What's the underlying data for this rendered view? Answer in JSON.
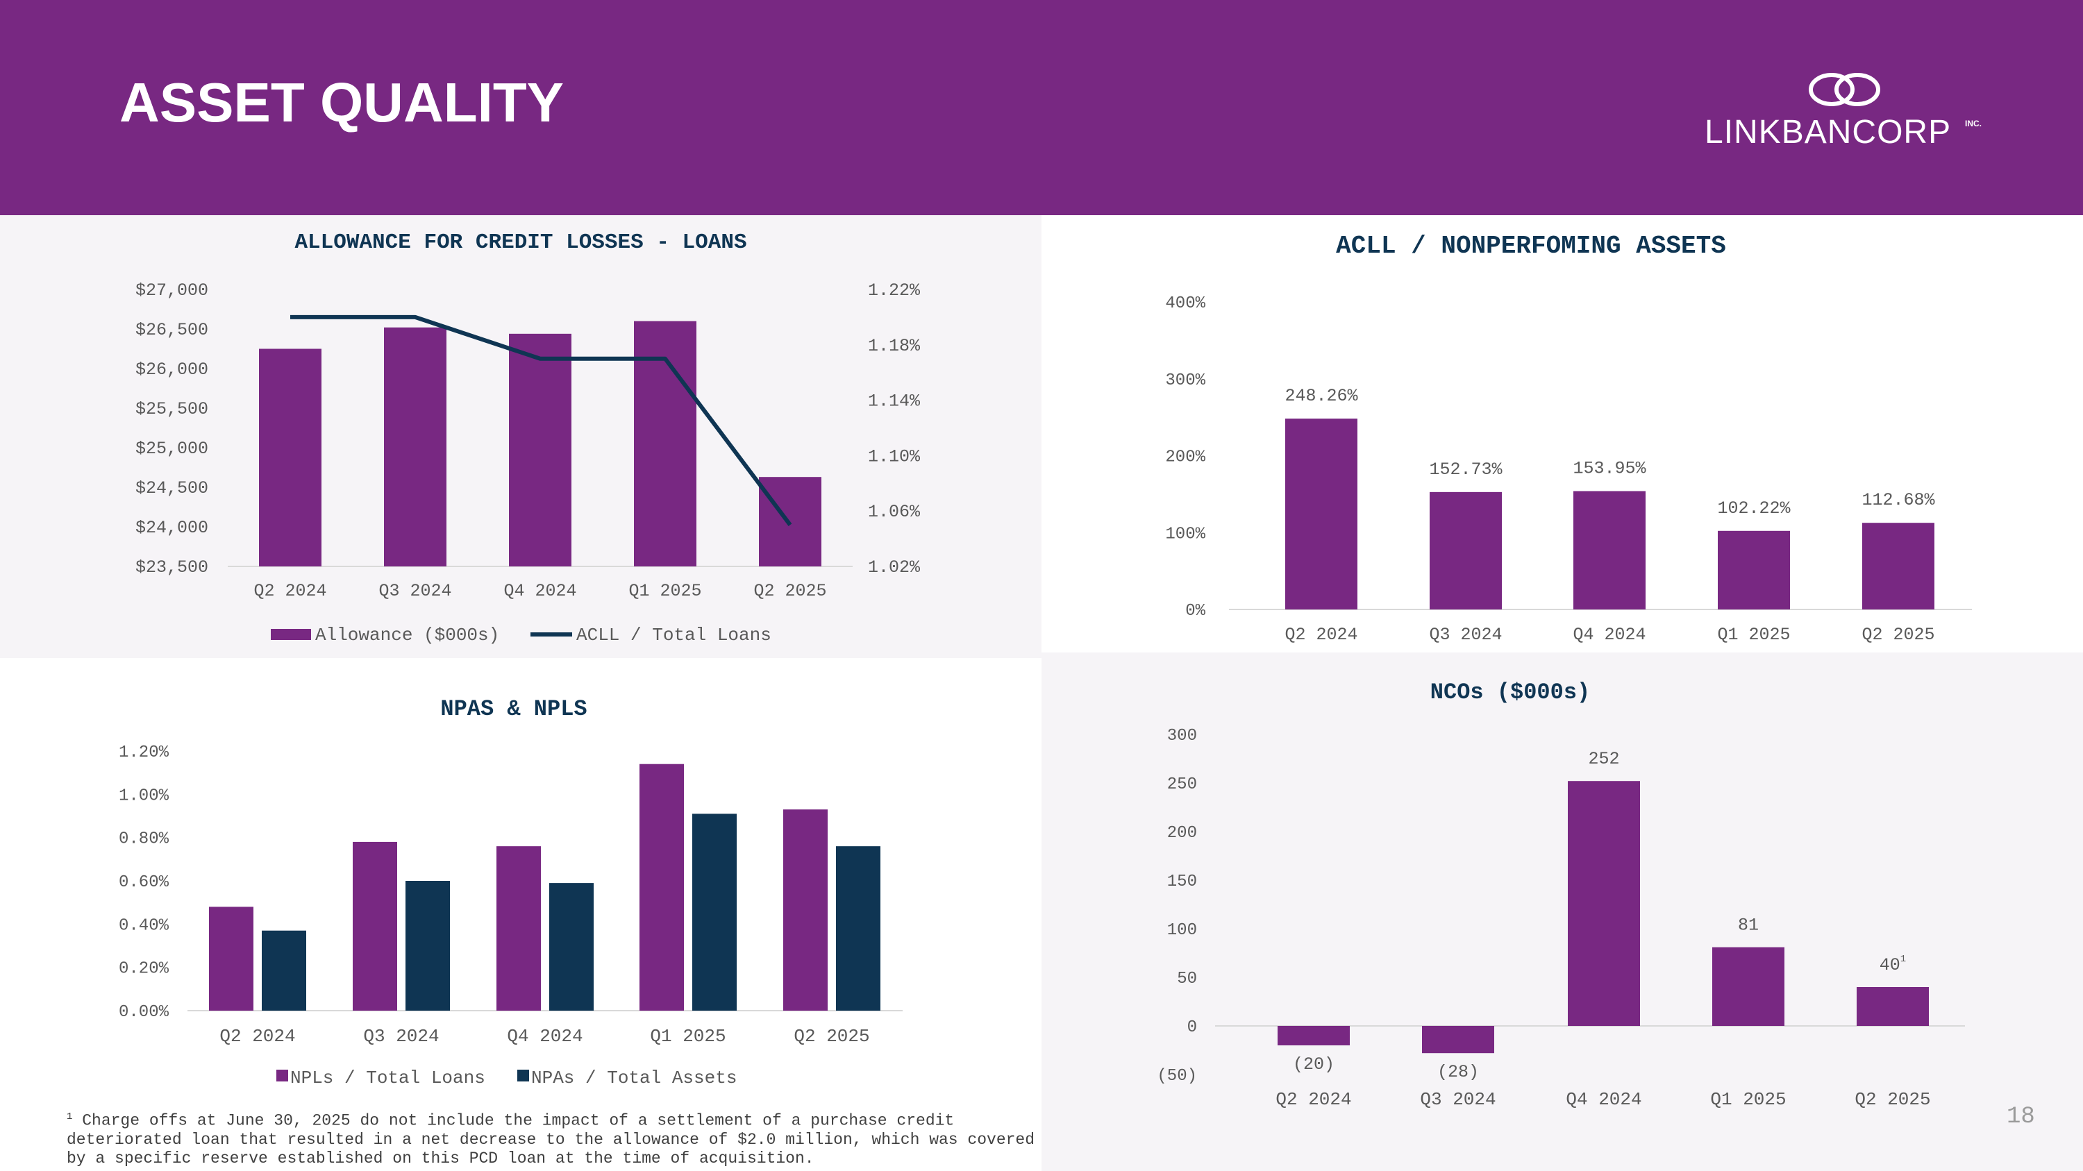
{
  "slide": {
    "title": "ASSET QUALITY",
    "logo_text": "LINKBANCORP",
    "logo_suffix": "INC.",
    "page_number": "18",
    "footnote_marker": "1",
    "footnote": "Charge offs at June 30, 2025 do not include the impact of a settlement of a purchase credit deteriorated loan that resulted in a net decrease to the allowance of $2.0 million, which was covered by a specific reserve established on this PCD loan at the time of acquisition."
  },
  "colors": {
    "purple": "#782882",
    "navy": "#0f3553",
    "axis": "#d9d9d9",
    "text": "#595959"
  },
  "chart_data": [
    {
      "id": "acl",
      "type": "bar",
      "title": "ALLOWANCE FOR CREDIT LOSSES - LOANS",
      "categories": [
        "Q2 2024",
        "Q3 2024",
        "Q4 2024",
        "Q1 2025",
        "Q2 2025"
      ],
      "series": [
        {
          "name": "Allowance ($000s)",
          "type": "bar",
          "axis": "left",
          "values": [
            26250,
            26520,
            26440,
            26600,
            24630
          ]
        },
        {
          "name": "ACLL / Total Loans",
          "type": "line",
          "axis": "right",
          "values": [
            1.2,
            1.2,
            1.17,
            1.17,
            1.05
          ]
        }
      ],
      "ylim": [
        23500,
        27000
      ],
      "yticks": [
        "$23,500",
        "$24,000",
        "$24,500",
        "$25,000",
        "$25,500",
        "$26,000",
        "$26,500",
        "$27,000"
      ],
      "y2lim": [
        1.02,
        1.22
      ],
      "y2ticks": [
        "1.02%",
        "1.06%",
        "1.10%",
        "1.14%",
        "1.18%",
        "1.22%"
      ],
      "legend": "bottom"
    },
    {
      "id": "ratio",
      "type": "bar",
      "title": "ACLL / NONPERFOMING ASSETS",
      "categories": [
        "Q2 2024",
        "Q3 2024",
        "Q4 2024",
        "Q1 2025",
        "Q2 2025"
      ],
      "series": [
        {
          "name": "ACLL / Nonperforming Assets",
          "values": [
            248.26,
            152.73,
            153.95,
            102.22,
            112.68
          ]
        }
      ],
      "data_labels": [
        "248.26%",
        "152.73%",
        "153.95%",
        "102.22%",
        "112.68%"
      ],
      "ylim": [
        0,
        400
      ],
      "yticks": [
        "0%",
        "100%",
        "200%",
        "300%",
        "400%"
      ]
    },
    {
      "id": "npa",
      "type": "bar",
      "title": "NPAS & NPLS",
      "categories": [
        "Q2 2024",
        "Q3 2024",
        "Q4 2024",
        "Q1 2025",
        "Q2 2025"
      ],
      "series": [
        {
          "name": "NPLs / Total Loans",
          "values": [
            0.48,
            0.78,
            0.76,
            1.14,
            0.93
          ]
        },
        {
          "name": "NPAs / Total Assets",
          "values": [
            0.37,
            0.6,
            0.59,
            0.91,
            0.76
          ]
        }
      ],
      "ylim": [
        0,
        1.2
      ],
      "yticks": [
        "0.00%",
        "0.20%",
        "0.40%",
        "0.60%",
        "0.80%",
        "1.00%",
        "1.20%"
      ],
      "legend": "bottom"
    },
    {
      "id": "nco",
      "type": "bar",
      "title": "NCOs  ($000s)",
      "categories": [
        "Q2 2024",
        "Q3 2024",
        "Q4 2024",
        "Q1 2025",
        "Q2 2025"
      ],
      "series": [
        {
          "name": "NCOs ($000s)",
          "values": [
            -20,
            -28,
            252,
            81,
            40
          ]
        }
      ],
      "data_labels": [
        "(20)",
        "(28)",
        "252",
        "81",
        "40"
      ],
      "data_label_superscripts": [
        "",
        "",
        "",
        "",
        "1"
      ],
      "ylim": [
        -50,
        300
      ],
      "yticks": [
        "(50)",
        "0",
        "50",
        "100",
        "150",
        "200",
        "250",
        "300"
      ]
    }
  ]
}
